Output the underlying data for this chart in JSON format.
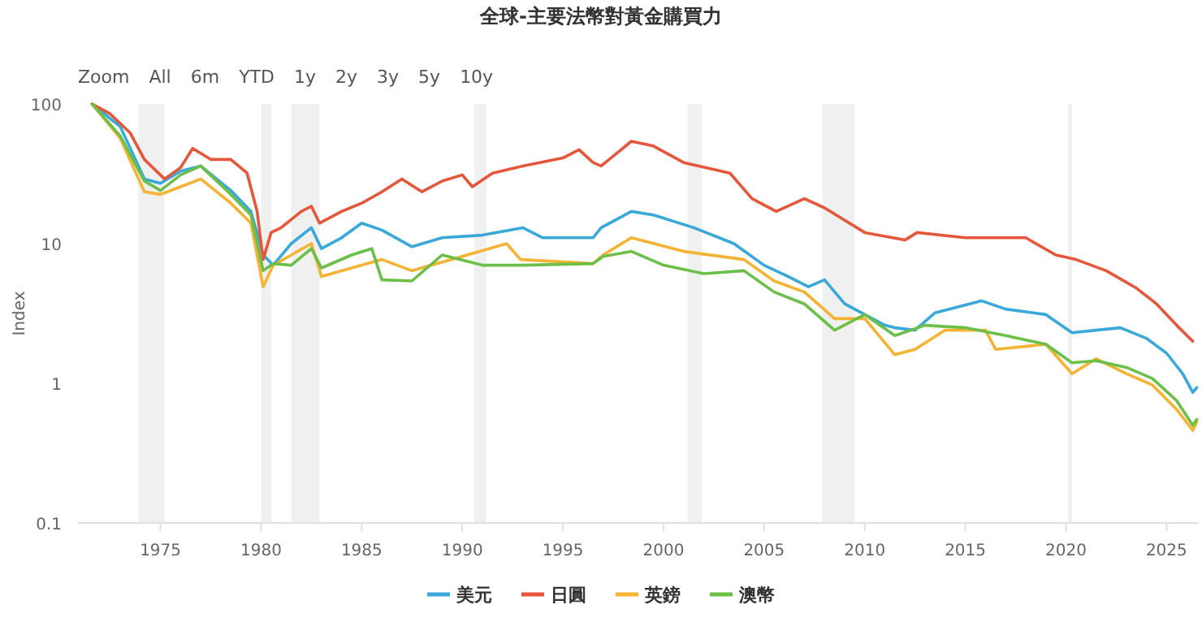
{
  "chart_data": {
    "type": "line",
    "title": "全球-主要法幣對黃金購買力",
    "ylabel": "Index",
    "log": "y",
    "ylim": [
      0.1,
      100
    ],
    "yticks": [
      0.1,
      1,
      10,
      100
    ],
    "xlim": [
      1970.9,
      2026.6
    ],
    "xticks": [
      1975,
      1980,
      1985,
      1990,
      1995,
      2000,
      2005,
      2010,
      2015,
      2020,
      2025
    ],
    "grid": false,
    "legend": "bottom",
    "line_style": "solid",
    "marker": "none",
    "annotations": [
      "Zoom",
      "All",
      "6m",
      "YTD",
      "1y",
      "2y",
      "3y",
      "5y",
      "10y"
    ],
    "bands": [
      {
        "axis": "x",
        "from": 1973.9,
        "to": 1975.2,
        "color": "#f0f0f0"
      },
      {
        "axis": "x",
        "from": 1980.0,
        "to": 1980.5,
        "color": "#f0f0f0"
      },
      {
        "axis": "x",
        "from": 1981.5,
        "to": 1982.9,
        "color": "#f0f0f0"
      },
      {
        "axis": "x",
        "from": 1990.6,
        "to": 1991.2,
        "color": "#f0f0f0"
      },
      {
        "axis": "x",
        "from": 2001.2,
        "to": 2001.9,
        "color": "#f0f0f0"
      },
      {
        "axis": "x",
        "from": 2007.9,
        "to": 2009.5,
        "color": "#f0f0f0"
      },
      {
        "axis": "x",
        "from": 2020.1,
        "to": 2020.3,
        "color": "#f0f0f0"
      }
    ],
    "series": [
      {
        "name": "美元",
        "color": "#3aa8d8",
        "x": [
          1971.6,
          1973,
          1974.2,
          1975,
          1976,
          1977,
          1978.5,
          1979.5,
          1980.1,
          1980.6,
          1981.5,
          1982.5,
          1983,
          1984,
          1985,
          1986,
          1987.5,
          1989,
          1991,
          1993,
          1994,
          1996.5,
          1996.9,
          1998.4,
          1999.5,
          2001.5,
          2003.5,
          2005,
          2006.2,
          2007.2,
          2008,
          2009,
          2011,
          2011.5,
          2012.5,
          2013.5,
          2015.8,
          2017,
          2019,
          2020.3,
          2021.5,
          2022.7,
          2024,
          2025,
          2025.8,
          2026.3,
          2026.5
        ],
        "values": [
          100,
          69,
          29,
          27,
          33,
          36,
          24,
          17,
          8.3,
          7,
          10,
          13,
          9.2,
          11,
          14,
          12.5,
          9.5,
          11,
          11.5,
          13,
          11,
          11,
          13,
          17,
          16,
          13,
          10,
          7,
          5.8,
          4.9,
          5.5,
          3.7,
          2.6,
          2.5,
          2.4,
          3.2,
          3.9,
          3.4,
          3.1,
          2.3,
          2.4,
          2.5,
          2.1,
          1.64,
          1.17,
          0.86,
          0.93
        ]
      },
      {
        "name": "日圓",
        "color": "#e5573b",
        "x": [
          1971.6,
          1972.5,
          1973.5,
          1974.2,
          1975.2,
          1976,
          1976.6,
          1977.5,
          1978.5,
          1979.3,
          1979.8,
          1980.1,
          1980.5,
          1981,
          1982,
          1982.5,
          1982.9,
          1984,
          1985,
          1986,
          1987,
          1988,
          1989,
          1990,
          1990.5,
          1991.5,
          1993,
          1995,
          1995.8,
          1996.5,
          1996.9,
          1998.4,
          1999.5,
          2001,
          2003.3,
          2004.4,
          2005.6,
          2007,
          2008,
          2010,
          2012,
          2012.6,
          2015,
          2018,
          2019.5,
          2020.5,
          2022,
          2023.5,
          2024.5,
          2025.5,
          2026.3
        ],
        "values": [
          100,
          85,
          62,
          40,
          29,
          35,
          48,
          40,
          40,
          32,
          17,
          7.7,
          12,
          13,
          17,
          18.5,
          14,
          17,
          19.5,
          23.5,
          29,
          23.5,
          28,
          31,
          25.5,
          32,
          36,
          41,
          47,
          38,
          36,
          54,
          50,
          38,
          32,
          21,
          17,
          21,
          18,
          12,
          10.6,
          12,
          11,
          11,
          8.3,
          7.7,
          6.4,
          4.8,
          3.7,
          2.6,
          2.0
        ]
      },
      {
        "name": "英鎊",
        "color": "#f5b335",
        "x": [
          1971.6,
          1973,
          1974.2,
          1975,
          1976,
          1977,
          1978.5,
          1979.5,
          1980.1,
          1980.6,
          1981.5,
          1982.5,
          1983,
          1985,
          1986,
          1987.5,
          1990,
          1992.2,
          1992.9,
          1996.5,
          1997,
          1998.4,
          2001,
          2004,
          2005.5,
          2007,
          2008.5,
          2010,
          2011.5,
          2012.5,
          2014,
          2016,
          2016.5,
          2019,
          2020.3,
          2021.5,
          2023,
          2024.3,
          2025.5,
          2026.3,
          2026.5
        ],
        "values": [
          100,
          57,
          23.5,
          22.5,
          25.5,
          29,
          19.5,
          14,
          4.9,
          7,
          8.3,
          10,
          5.8,
          7,
          7.7,
          6.4,
          8.1,
          10,
          7.7,
          7.2,
          8.3,
          11,
          8.8,
          7.7,
          5.4,
          4.5,
          2.9,
          2.9,
          1.6,
          1.75,
          2.4,
          2.4,
          1.75,
          1.9,
          1.17,
          1.5,
          1.17,
          0.97,
          0.65,
          0.46,
          0.53
        ]
      },
      {
        "name": "澳幣",
        "color": "#6cc04a",
        "x": [
          1971.6,
          1973,
          1974.2,
          1975,
          1976,
          1977,
          1978.5,
          1979.5,
          1980.1,
          1980.6,
          1981.5,
          1982.5,
          1983,
          1984.5,
          1985.5,
          1986,
          1987.5,
          1989,
          1991,
          1993,
          1996.5,
          1997,
          1998.4,
          2000,
          2002,
          2004,
          2005.5,
          2007,
          2008.5,
          2010,
          2011.5,
          2013,
          2015,
          2017,
          2019,
          2020.3,
          2021.5,
          2023,
          2024.3,
          2025.5,
          2026.3,
          2026.5
        ],
        "values": [
          100,
          59,
          28,
          24,
          31,
          36,
          22.5,
          16,
          6.4,
          7.2,
          7,
          9.2,
          6.7,
          8.3,
          9.2,
          5.5,
          5.4,
          8.3,
          7,
          7,
          7.2,
          8.1,
          8.8,
          7,
          6.1,
          6.4,
          4.5,
          3.7,
          2.4,
          3.1,
          2.2,
          2.6,
          2.5,
          2.2,
          1.9,
          1.4,
          1.45,
          1.3,
          1.08,
          0.75,
          0.5,
          0.55
        ]
      }
    ]
  }
}
